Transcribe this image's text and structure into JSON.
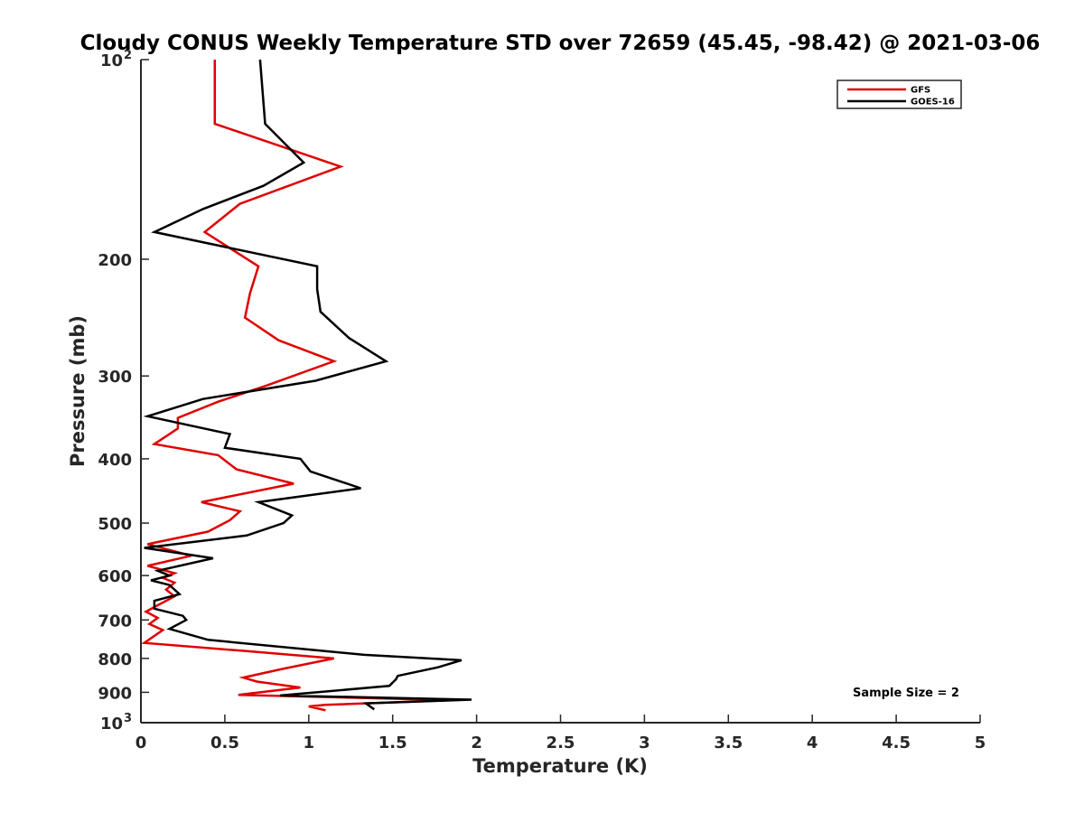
{
  "chart_data": {
    "type": "line",
    "title": "Cloudy CONUS Weekly Temperature STD over 72659 (45.45, -98.42) @ 2021-03-06",
    "xlabel": "Temperature (K)",
    "ylabel": "Pressure (mb)",
    "xlim": [
      0,
      5
    ],
    "ylim": [
      100,
      1000
    ],
    "y_scale": "log",
    "y_reversed": true,
    "x_ticks": [
      0,
      0.5,
      1,
      1.5,
      2,
      2.5,
      3,
      3.5,
      4,
      4.5,
      5
    ],
    "x_tick_labels": [
      "0",
      "0.5",
      "1",
      "1.5",
      "2",
      "2.5",
      "3",
      "3.5",
      "4",
      "4.5",
      "5"
    ],
    "y_ticks": [
      {
        "value": 100,
        "label": "10",
        "exp": "2"
      },
      {
        "value": 200,
        "label": "200",
        "exp": ""
      },
      {
        "value": 300,
        "label": "300",
        "exp": ""
      },
      {
        "value": 400,
        "label": "400",
        "exp": ""
      },
      {
        "value": 500,
        "label": "500",
        "exp": ""
      },
      {
        "value": 600,
        "label": "600",
        "exp": ""
      },
      {
        "value": 700,
        "label": "700",
        "exp": ""
      },
      {
        "value": 800,
        "label": "800",
        "exp": ""
      },
      {
        "value": 900,
        "label": "900",
        "exp": ""
      },
      {
        "value": 1000,
        "label": "10",
        "exp": "3"
      }
    ],
    "grid": false,
    "legend_position": "top-right",
    "annotation": "Sample Size = 2",
    "series": [
      {
        "name": "GFS",
        "color": "#e00000",
        "points": [
          [
            0.44,
            100
          ],
          [
            0.44,
            125
          ],
          [
            1.19,
            145
          ],
          [
            0.59,
            165
          ],
          [
            0.38,
            182
          ],
          [
            0.7,
            205
          ],
          [
            0.65,
            225
          ],
          [
            0.62,
            245
          ],
          [
            0.82,
            265
          ],
          [
            1.15,
            285
          ],
          [
            0.75,
            310
          ],
          [
            0.46,
            328
          ],
          [
            0.22,
            347
          ],
          [
            0.22,
            360
          ],
          [
            0.08,
            380
          ],
          [
            0.46,
            395
          ],
          [
            0.57,
            415
          ],
          [
            0.91,
            436
          ],
          [
            0.36,
            465
          ],
          [
            0.59,
            480
          ],
          [
            0.53,
            495
          ],
          [
            0.4,
            515
          ],
          [
            0.04,
            538
          ],
          [
            0.3,
            560
          ],
          [
            0.04,
            580
          ],
          [
            0.2,
            595
          ],
          [
            0.13,
            605
          ],
          [
            0.2,
            615
          ],
          [
            0.15,
            630
          ],
          [
            0.2,
            645
          ],
          [
            0.1,
            665
          ],
          [
            0.03,
            680
          ],
          [
            0.1,
            695
          ],
          [
            0.05,
            710
          ],
          [
            0.13,
            725
          ],
          [
            0.02,
            758
          ],
          [
            0.63,
            780
          ],
          [
            1.15,
            800
          ],
          [
            0.84,
            830
          ],
          [
            0.61,
            855
          ],
          [
            0.69,
            867
          ],
          [
            0.95,
            885
          ],
          [
            0.58,
            908
          ],
          [
            1.85,
            925
          ],
          [
            1.1,
            940
          ],
          [
            1.0,
            945
          ],
          [
            1.1,
            958
          ]
        ]
      },
      {
        "name": "GOES-16",
        "color": "#000000",
        "points": [
          [
            0.71,
            100
          ],
          [
            0.74,
            125
          ],
          [
            0.97,
            143
          ],
          [
            0.73,
            155
          ],
          [
            0.37,
            168
          ],
          [
            0.08,
            182
          ],
          [
            1.05,
            205
          ],
          [
            1.05,
            222
          ],
          [
            1.07,
            240
          ],
          [
            1.24,
            263
          ],
          [
            1.46,
            285
          ],
          [
            1.04,
            305
          ],
          [
            0.37,
            325
          ],
          [
            0.04,
            345
          ],
          [
            0.53,
            367
          ],
          [
            0.5,
            385
          ],
          [
            0.95,
            400
          ],
          [
            1.01,
            418
          ],
          [
            1.31,
            443
          ],
          [
            0.7,
            465
          ],
          [
            0.9,
            487
          ],
          [
            0.85,
            500
          ],
          [
            0.63,
            522
          ],
          [
            0.02,
            545
          ],
          [
            0.43,
            565
          ],
          [
            0.1,
            590
          ],
          [
            0.17,
            600
          ],
          [
            0.06,
            610
          ],
          [
            0.17,
            620
          ],
          [
            0.23,
            640
          ],
          [
            0.08,
            655
          ],
          [
            0.08,
            673
          ],
          [
            0.25,
            690
          ],
          [
            0.27,
            700
          ],
          [
            0.17,
            722
          ],
          [
            0.4,
            750
          ],
          [
            1.33,
            790
          ],
          [
            1.91,
            805
          ],
          [
            1.77,
            825
          ],
          [
            1.53,
            850
          ],
          [
            1.52,
            860
          ],
          [
            1.48,
            880
          ],
          [
            0.83,
            910
          ],
          [
            1.97,
            923
          ],
          [
            1.34,
            935
          ],
          [
            1.39,
            955
          ]
        ]
      }
    ]
  }
}
